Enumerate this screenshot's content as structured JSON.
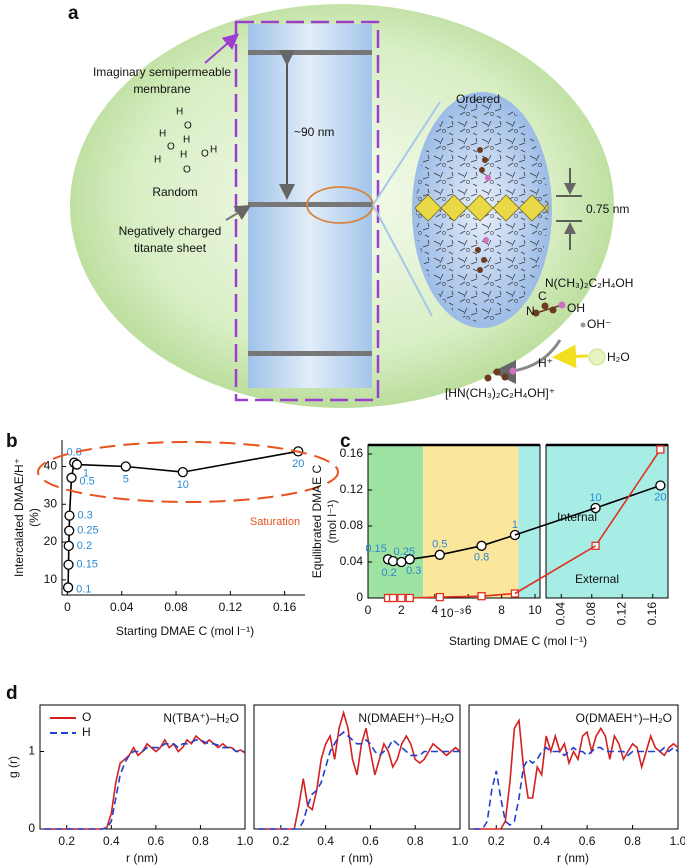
{
  "panel_labels": [
    "a",
    "b",
    "c",
    "d"
  ],
  "diagram": {
    "membrane_label_lines": [
      "Imaginary semipermeable",
      "membrane"
    ],
    "spacing": "~90 nm",
    "random": "Random",
    "random_atoms": [
      "H",
      "O",
      "H",
      "O",
      "H",
      "H",
      "H",
      "O",
      "O",
      "H"
    ],
    "sheet_label_lines": [
      "Negatively charged",
      "titanate sheet"
    ],
    "ordered": "Ordered",
    "thickness": "0.75 nm",
    "molecule": "N(CH₃)₂C₂H₄OH",
    "molecule_atoms": [
      "C",
      "N",
      "OH"
    ],
    "hydroxide": "OH⁻",
    "proton": "H⁺",
    "water": "H₂O",
    "cation": "[HN(CH₃)₂C₂H₄OH]⁺"
  },
  "chart_data": [
    {
      "type": "line",
      "ylabel_lines": [
        "Intercalated DMAE/H⁺",
        "(%)"
      ],
      "xlabel": "Starting DMAE C (mol l⁻¹)",
      "x": [
        0.0005,
        0.0008,
        0.001,
        0.0013,
        0.0015,
        0.003,
        0.005,
        0.007,
        0.043,
        0.085,
        0.17
      ],
      "values": [
        8,
        14,
        19,
        23,
        27,
        37,
        41,
        40.5,
        40,
        38.5,
        44
      ],
      "point_labels": [
        "0.1",
        "0.15",
        "0.2",
        "0.25",
        "0.3",
        "0.5",
        "0.8",
        "1",
        "5",
        "10",
        "20"
      ],
      "color": "#000000",
      "marker": "circle",
      "label_color": "#2a8ad4",
      "xlim": [
        -0.004,
        0.175
      ],
      "ylim": [
        6,
        47
      ],
      "xticks": [
        0,
        0.04,
        0.08,
        0.12,
        0.16
      ],
      "yticks": [
        10,
        20,
        30,
        40
      ],
      "annotation": "Saturation",
      "annotation_color": "#e8531f"
    },
    {
      "type": "line",
      "ylabel_lines": [
        "Equilibrated DMAE C",
        "(mol l⁻¹)"
      ],
      "xlabel": "Starting DMAE C (mol l⁻¹)",
      "x_left_unit": "10⁻³",
      "xlim": [
        0,
        10.3
      ],
      "xticks": [
        0,
        2,
        4,
        6,
        8,
        10
      ],
      "x2lim": [
        0.02,
        0.18
      ],
      "x2ticks": [
        0.04,
        0.08,
        0.12,
        0.16
      ],
      "ylim": [
        0,
        0.17
      ],
      "yticks": [
        0,
        0.04,
        0.08,
        0.12,
        0.16
      ],
      "regions": [
        {
          "from": 0,
          "to": 3.3,
          "color": "#9fe3a3"
        },
        {
          "from": 3.3,
          "to": 9,
          "color": "#fbe79c"
        },
        {
          "from": 9,
          "to": 10.3,
          "color": "#a8ece6"
        }
      ],
      "right_color": "#a8ece6",
      "label_color": "#2a8ad4",
      "series": [
        {
          "name": "Internal",
          "color": "#000000",
          "marker": "circle",
          "x": [
            1.2,
            1.5,
            2,
            2.5,
            4.3,
            6.8,
            8.8
          ],
          "values": [
            0.043,
            0.041,
            0.04,
            0.043,
            0.048,
            0.058,
            0.07
          ],
          "point_labels": [
            "0.15",
            "0.2",
            "0.25",
            "0.3",
            "0.5",
            "0.8",
            "1"
          ],
          "x2": [
            0.085,
            0.17
          ],
          "values2": [
            0.1,
            0.125
          ],
          "point_labels2": [
            "10",
            "20"
          ]
        },
        {
          "name": "External",
          "color": "#e03020",
          "marker": "square",
          "x": [
            1.2,
            1.5,
            2,
            2.5,
            4.3,
            6.8,
            8.8
          ],
          "values": [
            0,
            0,
            0,
            0,
            0.001,
            0.002,
            0.005
          ],
          "x2": [
            0.085,
            0.17
          ],
          "values2": [
            0.058,
            0.165
          ]
        }
      ]
    },
    {
      "type": "line",
      "title": "N(TBA⁺)–H₂O",
      "xlabel": "r (nm)",
      "ylabel": "g (r)",
      "legend": "upper left",
      "x": [
        0.1,
        0.12,
        0.14,
        0.16,
        0.18,
        0.2,
        0.22,
        0.24,
        0.26,
        0.28,
        0.3,
        0.32,
        0.34,
        0.36,
        0.38,
        0.4,
        0.42,
        0.44,
        0.46,
        0.48,
        0.5,
        0.52,
        0.54,
        0.56,
        0.58,
        0.6,
        0.62,
        0.64,
        0.66,
        0.68,
        0.7,
        0.72,
        0.74,
        0.76,
        0.78,
        0.8,
        0.82,
        0.84,
        0.86,
        0.88,
        0.9,
        0.92,
        0.94,
        0.96,
        0.98,
        1
      ],
      "xlim": [
        0.08,
        1
      ],
      "ylim": [
        0,
        1.6
      ],
      "xticks": [
        0.2,
        0.4,
        0.6,
        0.8,
        {
          "value": 1,
          "label": "1.0"
        }
      ],
      "yticks": [
        0,
        1
      ],
      "series": [
        {
          "name": "O",
          "color": "#d42020",
          "dash": false,
          "values": [
            0,
            0,
            0,
            0,
            0,
            0,
            0,
            0,
            0,
            0,
            0,
            0,
            0,
            0,
            0.02,
            0.2,
            0.6,
            0.85,
            0.9,
            0.95,
            1.05,
            0.95,
            1,
            1.1,
            1.05,
            1,
            1.05,
            1.15,
            1.05,
            1.1,
            1,
            1.05,
            1.15,
            1.1,
            1.2,
            1.15,
            1.1,
            1.15,
            1.1,
            1.05,
            1.1,
            1.05,
            1.05,
            1,
            1.02,
            0.98
          ]
        },
        {
          "name": "H",
          "color": "#2040d0",
          "dash": true,
          "values": [
            0,
            0,
            0,
            0,
            0,
            0,
            0,
            0,
            0,
            0,
            0,
            0,
            0,
            0,
            0.01,
            0.1,
            0.4,
            0.7,
            0.85,
            0.95,
            1,
            1,
            1,
            1.05,
            1.05,
            1.05,
            1.05,
            1.1,
            1.1,
            1.1,
            1.05,
            1.1,
            1.1,
            1.12,
            1.15,
            1.15,
            1.12,
            1.1,
            1.1,
            1.08,
            1.05,
            1.05,
            1.05,
            1,
            1,
            1
          ]
        }
      ]
    },
    {
      "type": "line",
      "title": "N(DMAEH⁺)–H₂O",
      "xlabel": "r (nm)",
      "x": [
        0.1,
        0.12,
        0.14,
        0.16,
        0.18,
        0.2,
        0.22,
        0.24,
        0.26,
        0.28,
        0.3,
        0.32,
        0.34,
        0.36,
        0.38,
        0.4,
        0.42,
        0.44,
        0.46,
        0.48,
        0.5,
        0.52,
        0.54,
        0.56,
        0.58,
        0.6,
        0.62,
        0.64,
        0.66,
        0.68,
        0.7,
        0.72,
        0.74,
        0.76,
        0.78,
        0.8,
        0.82,
        0.84,
        0.86,
        0.88,
        0.9,
        0.92,
        0.94,
        0.96,
        0.98,
        1
      ],
      "xlim": [
        0.08,
        1
      ],
      "ylim": [
        0,
        1.6
      ],
      "xticks": [
        0.2,
        0.4,
        0.6,
        0.8,
        {
          "value": 1,
          "label": "1.0"
        }
      ],
      "series": [
        {
          "color": "#d42020",
          "dash": false,
          "values": [
            0,
            0,
            0,
            0,
            0,
            0,
            0,
            0,
            0,
            0.3,
            0.65,
            0.3,
            0.25,
            0.5,
            0.9,
            1.1,
            1.2,
            0.9,
            1.3,
            1.5,
            1.3,
            0.9,
            0.7,
            1.1,
            1.3,
            1,
            0.7,
            0.9,
            1.1,
            1,
            0.8,
            0.9,
            1.1,
            1.2,
            1.1,
            0.9,
            0.85,
            0.9,
            1,
            1.1,
            1.05,
            1,
            0.95,
            1,
            1.05,
            1
          ]
        },
        {
          "color": "#2040d0",
          "dash": true,
          "values": [
            0,
            0,
            0,
            0,
            0,
            0,
            0,
            0,
            0,
            0,
            0.1,
            0.3,
            0.45,
            0.5,
            0.6,
            0.8,
            1,
            1.1,
            1.2,
            1.25,
            1.2,
            1.15,
            1.1,
            1.1,
            1.15,
            1.1,
            1,
            0.95,
            1,
            1.05,
            1.15,
            1.1,
            1.05,
            1,
            0.95,
            0.95,
            0.95,
            1,
            1,
            1,
            1,
            1,
            1,
            1,
            1,
            1
          ]
        }
      ]
    },
    {
      "type": "line",
      "title": "O(DMAEH⁺)–H₂O",
      "xlabel": "r (nm)",
      "x": [
        0.1,
        0.12,
        0.14,
        0.16,
        0.18,
        0.2,
        0.22,
        0.24,
        0.26,
        0.28,
        0.3,
        0.32,
        0.34,
        0.36,
        0.38,
        0.4,
        0.42,
        0.44,
        0.46,
        0.48,
        0.5,
        0.52,
        0.54,
        0.56,
        0.58,
        0.6,
        0.62,
        0.64,
        0.66,
        0.68,
        0.7,
        0.72,
        0.74,
        0.76,
        0.78,
        0.8,
        0.82,
        0.84,
        0.86,
        0.88,
        0.9,
        0.92,
        0.94,
        0.96,
        0.98,
        1
      ],
      "xlim": [
        0.08,
        1
      ],
      "ylim": [
        0,
        1.6
      ],
      "xticks": [
        0.2,
        0.4,
        0.6,
        0.8,
        {
          "value": 1,
          "label": "1.0"
        }
      ],
      "series": [
        {
          "color": "#d42020",
          "dash": false,
          "values": [
            0,
            0,
            0,
            0,
            0,
            0,
            0,
            0.1,
            0.6,
            1.3,
            1.4,
            0.8,
            0.4,
            0.4,
            0.8,
            0.7,
            1.2,
            1,
            1.2,
            1,
            1.1,
            0.85,
            1,
            0.9,
            1.2,
            1.25,
            1,
            1.2,
            1.3,
            1.2,
            0.9,
            1.2,
            1.1,
            0.9,
            1,
            1.1,
            1.05,
            0.8,
            1,
            1.2,
            1.05,
            1,
            0.95,
            1.05,
            1.1,
            1.05
          ]
        },
        {
          "color": "#2040d0",
          "dash": true,
          "values": [
            0,
            0,
            0,
            0.1,
            0.5,
            0.75,
            0.4,
            0.1,
            0.05,
            0.1,
            0.4,
            0.8,
            0.9,
            0.85,
            0.9,
            1,
            1.05,
            1,
            1,
            1,
            0.95,
            1,
            1.05,
            1,
            1,
            0.95,
            1,
            1.05,
            1.05,
            1,
            1,
            1,
            1,
            1,
            0.95,
            1,
            1,
            1,
            1,
            1,
            1,
            1,
            1.05,
            1,
            1.05,
            1
          ]
        }
      ]
    }
  ]
}
